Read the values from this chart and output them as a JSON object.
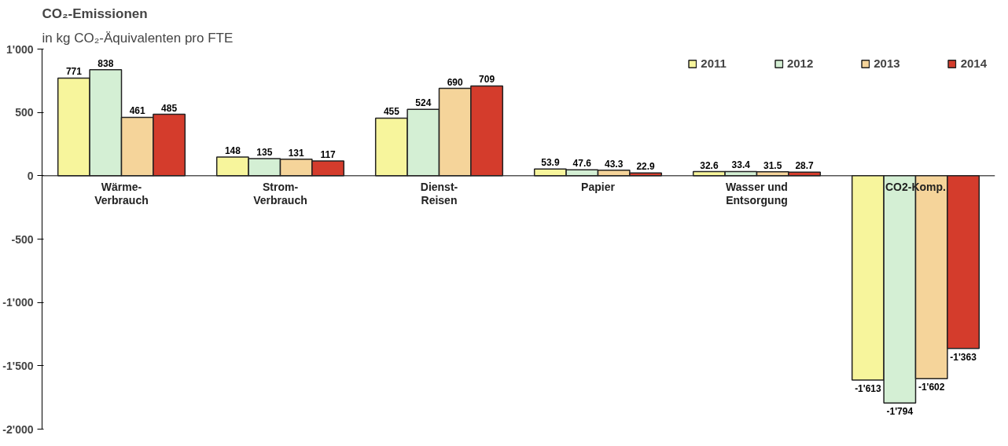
{
  "chart_data": {
    "type": "bar",
    "title": "CO₂-Emissionen",
    "subtitle": "in kg CO₂-Äquivalenten pro FTE",
    "categories": [
      "Wärme-\nVerbrauch",
      "Strom-\nVerbrauch",
      "Dienst-\nReisen",
      "Papier",
      "Wasser und\nEntsorgung",
      "CO2-Komp."
    ],
    "series": [
      {
        "name": "2011",
        "color": "#f7f59c",
        "values": [
          771,
          148,
          455,
          53.9,
          32.6,
          -1613
        ],
        "value_labels": [
          "771",
          "148",
          "455",
          "53.9",
          "32.6",
          "-1'613"
        ]
      },
      {
        "name": "2012",
        "color": "#d4efd4",
        "values": [
          838,
          135,
          524,
          47.6,
          33.4,
          -1794
        ],
        "value_labels": [
          "838",
          "135",
          "524",
          "47.6",
          "33.4",
          "-1'794"
        ]
      },
      {
        "name": "2013",
        "color": "#f5d49a",
        "values": [
          461,
          131,
          690,
          43.3,
          31.5,
          -1602
        ],
        "value_labels": [
          "461",
          "131",
          "690",
          "43.3",
          "31.5",
          "-1'602"
        ]
      },
      {
        "name": "2014",
        "color": "#d43c2c",
        "values": [
          485,
          117,
          709,
          22.9,
          28.7,
          -1363
        ],
        "value_labels": [
          "485",
          "117",
          "709",
          "22.9",
          "28.7",
          "-1'363"
        ]
      }
    ],
    "ylim": [
      -2000,
      1000
    ],
    "yticks": [
      {
        "value": -2000,
        "label": "-2'000"
      },
      {
        "value": -1500,
        "label": "-1'500"
      },
      {
        "value": -1000,
        "label": "-1'000"
      },
      {
        "value": -500,
        "label": "-500"
      },
      0,
      500,
      {
        "value": 1000,
        "label": "1'000"
      }
    ],
    "grid": false,
    "legend": "top right"
  }
}
